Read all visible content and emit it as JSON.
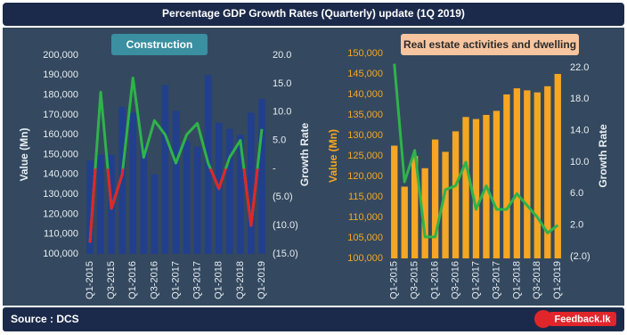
{
  "header": {
    "title": "Percentage GDP Growth Rates (Quarterly) update (1Q 2019)"
  },
  "chart_data": [
    {
      "type": "bar",
      "title": "Construction",
      "title_box_color": "#3a8fa0",
      "title_text_color": "#ffffff",
      "categories": [
        "Q1-2015",
        null,
        "Q3-2015",
        null,
        "Q1-2016",
        null,
        "Q3-2016",
        null,
        "Q1-2017",
        null,
        "Q3-2017",
        null,
        "Q1-2018",
        null,
        "Q3-2018",
        null,
        "Q1-2019"
      ],
      "y_label": "Value (Mn)",
      "y2_label": "Growth Rate",
      "y_label_color": "#e8edf3",
      "ylim": [
        100000,
        200000
      ],
      "yticks": [
        {
          "value": 100000,
          "label": "100,000"
        },
        {
          "value": 110000,
          "label": "110,000"
        },
        {
          "value": 120000,
          "label": "120,000"
        },
        {
          "value": 130000,
          "label": "130,000"
        },
        {
          "value": 140000,
          "label": "140,000"
        },
        {
          "value": 150000,
          "label": "150,000"
        },
        {
          "value": 160000,
          "label": "160,000"
        },
        {
          "value": 170000,
          "label": "170,000"
        },
        {
          "value": 180000,
          "label": "180,000"
        },
        {
          "value": 190000,
          "label": "190,000"
        },
        {
          "value": 200000,
          "label": "200,000"
        }
      ],
      "y2lim": [
        -15,
        20
      ],
      "y2ticks": [
        {
          "value": -15,
          "label": "(15.0)"
        },
        {
          "value": -10,
          "label": "(10.0)"
        },
        {
          "value": -5,
          "label": "(5.0)"
        },
        {
          "value": 0,
          "label": "-"
        },
        {
          "value": 5,
          "label": "5.0"
        },
        {
          "value": 10,
          "label": "10.0"
        },
        {
          "value": 15,
          "label": "15.0"
        },
        {
          "value": 20,
          "label": "20.0"
        }
      ],
      "series": [
        {
          "type": "bar",
          "color": "#213f8c",
          "values": [
            147000,
            150000,
            150000,
            174000,
            171000,
            155000,
            140000,
            185000,
            172000,
            157000,
            154000,
            190000,
            166000,
            163000,
            160000,
            171000,
            178000
          ]
        },
        {
          "type": "line",
          "axis": "y2",
          "color": "#2fb34a",
          "negative_color": "#e0262b",
          "values": [
            -13,
            13.5,
            -7,
            -1,
            16,
            2,
            8.5,
            6,
            1,
            6,
            8,
            1,
            -3.5,
            2,
            5,
            -10,
            7
          ]
        }
      ]
    },
    {
      "type": "bar",
      "title": "Real estate activities and dwelling",
      "title_box_color": "#f7c59f",
      "title_text_color": "#2b2b2b",
      "categories": [
        "Q1-2015",
        null,
        "Q3-2015",
        null,
        "Q1-2016",
        null,
        "Q3-2016",
        null,
        "Q1-2017",
        null,
        "Q3-2017",
        null,
        "Q1-2018",
        null,
        "Q3-2018",
        null,
        "Q1-2019"
      ],
      "y_label": "Value (Mn)",
      "y2_label": "Growth Rate",
      "y_label_color": "#f5a623",
      "ylim": [
        100000,
        150000
      ],
      "yticks": [
        {
          "value": 100000,
          "label": "100,000"
        },
        {
          "value": 105000,
          "label": "105,000"
        },
        {
          "value": 110000,
          "label": "110,000"
        },
        {
          "value": 115000,
          "label": "115,000"
        },
        {
          "value": 120000,
          "label": "120,000"
        },
        {
          "value": 125000,
          "label": "125,000"
        },
        {
          "value": 130000,
          "label": "130,000"
        },
        {
          "value": 135000,
          "label": "135,000"
        },
        {
          "value": 140000,
          "label": "140,000"
        },
        {
          "value": 145000,
          "label": "145,000"
        },
        {
          "value": 150000,
          "label": "150,000"
        }
      ],
      "y2lim": [
        -2,
        22
      ],
      "y2ticks": [
        {
          "value": -2,
          "label": "(2.0)"
        },
        {
          "value": 2,
          "label": "2.0"
        },
        {
          "value": 6,
          "label": "6.0"
        },
        {
          "value": 10,
          "label": "10.0"
        },
        {
          "value": 14,
          "label": "14.0"
        },
        {
          "value": 18,
          "label": "18.0"
        },
        {
          "value": 22,
          "label": "22.0"
        }
      ],
      "series": [
        {
          "type": "bar",
          "color": "#f5a623",
          "values": [
            127500,
            117500,
            125000,
            122000,
            129000,
            126000,
            131000,
            134500,
            134000,
            135000,
            136000,
            140000,
            141500,
            141000,
            140500,
            142000,
            145000
          ]
        },
        {
          "type": "line",
          "axis": "y2",
          "color": "#2fb34a",
          "negative_color": "#e0262b",
          "values": [
            22.5,
            7.5,
            11.5,
            0.5,
            0.5,
            6.5,
            7,
            10,
            4,
            7,
            4,
            4,
            6,
            4.5,
            3,
            1,
            2
          ]
        }
      ]
    }
  ],
  "footer": {
    "source": "Source : DCS",
    "logo": "Feedback.lk"
  }
}
